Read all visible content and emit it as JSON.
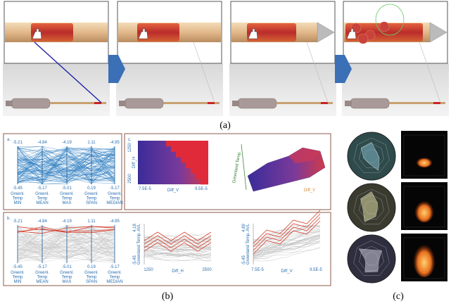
{
  "caption": {
    "a": "(a)",
    "b": "(b)",
    "c": "(c)"
  },
  "parallel_a": {
    "label": "a.",
    "top": [
      "-5.21",
      "-4.84",
      "-4.19",
      "1.11",
      "-4.95"
    ],
    "bottom": [
      "-5.45",
      "-5.17",
      "-5.01",
      "0.19",
      "-5.17"
    ],
    "axes": [
      [
        "Greenl.",
        "Temp",
        "MIN"
      ],
      [
        "Greenl.",
        "Temp",
        "MEAN"
      ],
      [
        "Greenl.",
        "Temp",
        "MAX"
      ],
      [
        "Greenl.",
        "Temp",
        "SPAN"
      ],
      [
        "Greenl.",
        "Temp",
        "MEDIAN"
      ]
    ]
  },
  "heatmap": {
    "label": "c.",
    "y_label": "Diff_H",
    "y_top": "1250",
    "y_bottom": "2500",
    "x_label": "Diff_V",
    "x_left": "7.5E-5",
    "x_right": "9.5E-5"
  },
  "surface": {
    "y_label": "Greenland Temp.",
    "x_label": "Diff_V"
  },
  "parallel_b": {
    "label": "b.",
    "top": [
      "-5.21",
      "-4.84",
      "-4.19",
      "1.11",
      "-4.95"
    ],
    "bottom": [
      "-5.45",
      "-5.17",
      "-5.01",
      "0.19",
      "-5.17"
    ],
    "axes": [
      [
        "Greenl.",
        "Temp",
        "MIN"
      ],
      [
        "Greenl.",
        "Temp",
        "MEAN"
      ],
      [
        "Greenl.",
        "Temp",
        "MAX"
      ],
      [
        "Greenl.",
        "Temp",
        "SPAN"
      ],
      [
        "Greenl.",
        "Temp",
        "MEDIAN"
      ]
    ]
  },
  "line_h": {
    "y_label": "Greenland Temp. AVL",
    "y_top": "4.18",
    "y_bottom": "-5.45",
    "x_left": "1250",
    "x_label": "Diff_H",
    "x_right": "2500"
  },
  "line_v": {
    "y_label": "Greenland Temp. AVL",
    "y_top": "4.89",
    "y_bottom": "-5.45",
    "x_left": "7.5E-5",
    "x_label": "Diff_V",
    "x_right": "9.5E-5"
  }
}
